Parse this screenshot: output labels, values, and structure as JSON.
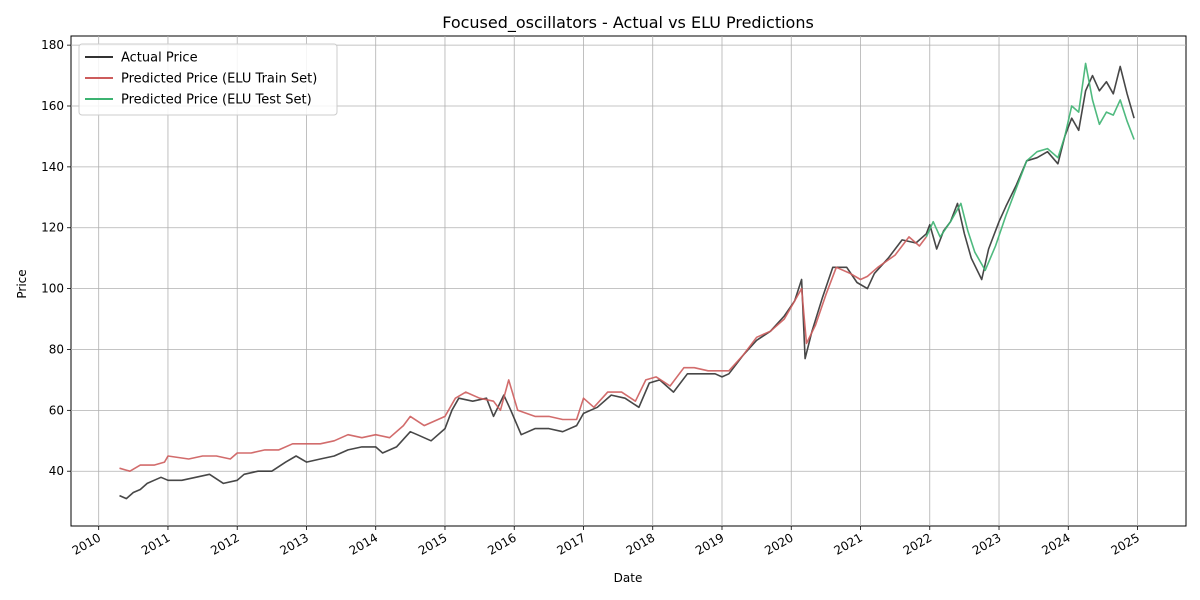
{
  "chart_data": {
    "type": "line",
    "title": "Focused_oscillators - Actual vs ELU Predictions",
    "xlabel": "Date",
    "ylabel": "Price",
    "xlim": [
      2009.6,
      2025.7
    ],
    "ylim": [
      22,
      183
    ],
    "grid": true,
    "legend_position": "top-left",
    "x_ticks": [
      2010,
      2011,
      2012,
      2013,
      2014,
      2015,
      2016,
      2017,
      2018,
      2019,
      2020,
      2021,
      2022,
      2023,
      2024,
      2025
    ],
    "x_tick_labels": [
      "2010",
      "2011",
      "2012",
      "2013",
      "2014",
      "2015",
      "2016",
      "2017",
      "2018",
      "2019",
      "2020",
      "2021",
      "2022",
      "2023",
      "2024",
      "2025"
    ],
    "y_ticks": [
      40,
      60,
      80,
      100,
      120,
      140,
      160,
      180
    ],
    "y_tick_labels": [
      "40",
      "60",
      "80",
      "100",
      "120",
      "140",
      "160",
      "180"
    ],
    "series": [
      {
        "name": "Actual Price",
        "color": "#333333",
        "points": [
          [
            2010.3,
            32
          ],
          [
            2010.4,
            31
          ],
          [
            2010.5,
            33
          ],
          [
            2010.6,
            34
          ],
          [
            2010.7,
            36
          ],
          [
            2010.8,
            37
          ],
          [
            2010.9,
            38
          ],
          [
            2011.0,
            37
          ],
          [
            2011.2,
            37
          ],
          [
            2011.4,
            38
          ],
          [
            2011.6,
            39
          ],
          [
            2011.8,
            36
          ],
          [
            2012.0,
            37
          ],
          [
            2012.1,
            39
          ],
          [
            2012.3,
            40
          ],
          [
            2012.5,
            40
          ],
          [
            2012.7,
            43
          ],
          [
            2012.85,
            45
          ],
          [
            2013.0,
            43
          ],
          [
            2013.2,
            44
          ],
          [
            2013.4,
            45
          ],
          [
            2013.6,
            47
          ],
          [
            2013.8,
            48
          ],
          [
            2014.0,
            48
          ],
          [
            2014.1,
            46
          ],
          [
            2014.3,
            48
          ],
          [
            2014.5,
            53
          ],
          [
            2014.6,
            52
          ],
          [
            2014.8,
            50
          ],
          [
            2015.0,
            54
          ],
          [
            2015.1,
            60
          ],
          [
            2015.2,
            64
          ],
          [
            2015.4,
            63
          ],
          [
            2015.6,
            64
          ],
          [
            2015.7,
            58
          ],
          [
            2015.85,
            65
          ],
          [
            2015.95,
            60
          ],
          [
            2016.1,
            52
          ],
          [
            2016.3,
            54
          ],
          [
            2016.5,
            54
          ],
          [
            2016.7,
            53
          ],
          [
            2016.9,
            55
          ],
          [
            2017.0,
            59
          ],
          [
            2017.2,
            61
          ],
          [
            2017.4,
            65
          ],
          [
            2017.6,
            64
          ],
          [
            2017.8,
            61
          ],
          [
            2017.95,
            69
          ],
          [
            2018.1,
            70
          ],
          [
            2018.3,
            66
          ],
          [
            2018.5,
            72
          ],
          [
            2018.7,
            72
          ],
          [
            2018.9,
            72
          ],
          [
            2019.0,
            71
          ],
          [
            2019.1,
            72
          ],
          [
            2019.3,
            78
          ],
          [
            2019.5,
            83
          ],
          [
            2019.7,
            86
          ],
          [
            2019.9,
            91
          ],
          [
            2020.05,
            96
          ],
          [
            2020.15,
            103
          ],
          [
            2020.2,
            77
          ],
          [
            2020.3,
            86
          ],
          [
            2020.45,
            97
          ],
          [
            2020.6,
            107
          ],
          [
            2020.8,
            107
          ],
          [
            2020.95,
            102
          ],
          [
            2021.1,
            100
          ],
          [
            2021.2,
            105
          ],
          [
            2021.4,
            110
          ],
          [
            2021.6,
            116
          ],
          [
            2021.8,
            115
          ],
          [
            2021.95,
            118
          ],
          [
            2022.0,
            121
          ],
          [
            2022.1,
            113
          ],
          [
            2022.2,
            119
          ],
          [
            2022.3,
            122
          ],
          [
            2022.4,
            128
          ],
          [
            2022.5,
            118
          ],
          [
            2022.6,
            110
          ],
          [
            2022.75,
            103
          ],
          [
            2022.85,
            113
          ],
          [
            2023.0,
            122
          ],
          [
            2023.1,
            127
          ],
          [
            2023.25,
            134
          ],
          [
            2023.4,
            142
          ],
          [
            2023.55,
            143
          ],
          [
            2023.7,
            145
          ],
          [
            2023.85,
            141
          ],
          [
            2023.95,
            150
          ],
          [
            2024.05,
            156
          ],
          [
            2024.15,
            152
          ],
          [
            2024.25,
            165
          ],
          [
            2024.35,
            170
          ],
          [
            2024.45,
            165
          ],
          [
            2024.55,
            168
          ],
          [
            2024.65,
            164
          ],
          [
            2024.75,
            173
          ],
          [
            2024.85,
            164
          ],
          [
            2024.95,
            156
          ]
        ]
      },
      {
        "name": "Predicted Price (ELU Train Set)",
        "color": "#cd5c5c",
        "points": [
          [
            2010.3,
            41
          ],
          [
            2010.45,
            40
          ],
          [
            2010.6,
            42
          ],
          [
            2010.8,
            42
          ],
          [
            2010.95,
            43
          ],
          [
            2011.0,
            45
          ],
          [
            2011.3,
            44
          ],
          [
            2011.5,
            45
          ],
          [
            2011.7,
            45
          ],
          [
            2011.9,
            44
          ],
          [
            2012.0,
            46
          ],
          [
            2012.2,
            46
          ],
          [
            2012.4,
            47
          ],
          [
            2012.6,
            47
          ],
          [
            2012.8,
            49
          ],
          [
            2013.0,
            49
          ],
          [
            2013.2,
            49
          ],
          [
            2013.4,
            50
          ],
          [
            2013.6,
            52
          ],
          [
            2013.8,
            51
          ],
          [
            2014.0,
            52
          ],
          [
            2014.2,
            51
          ],
          [
            2014.4,
            55
          ],
          [
            2014.5,
            58
          ],
          [
            2014.7,
            55
          ],
          [
            2014.9,
            57
          ],
          [
            2015.0,
            58
          ],
          [
            2015.15,
            64
          ],
          [
            2015.3,
            66
          ],
          [
            2015.5,
            64
          ],
          [
            2015.7,
            63
          ],
          [
            2015.8,
            60
          ],
          [
            2015.92,
            70
          ],
          [
            2016.05,
            60
          ],
          [
            2016.3,
            58
          ],
          [
            2016.5,
            58
          ],
          [
            2016.7,
            57
          ],
          [
            2016.9,
            57
          ],
          [
            2017.0,
            64
          ],
          [
            2017.15,
            61
          ],
          [
            2017.35,
            66
          ],
          [
            2017.55,
            66
          ],
          [
            2017.75,
            63
          ],
          [
            2017.9,
            70
          ],
          [
            2018.05,
            71
          ],
          [
            2018.25,
            68
          ],
          [
            2018.45,
            74
          ],
          [
            2018.6,
            74
          ],
          [
            2018.8,
            73
          ],
          [
            2018.95,
            73
          ],
          [
            2019.1,
            73
          ],
          [
            2019.3,
            78
          ],
          [
            2019.5,
            84
          ],
          [
            2019.7,
            86
          ],
          [
            2019.9,
            90
          ],
          [
            2020.05,
            96
          ],
          [
            2020.15,
            100
          ],
          [
            2020.22,
            82
          ],
          [
            2020.35,
            88
          ],
          [
            2020.5,
            98
          ],
          [
            2020.65,
            107
          ],
          [
            2020.85,
            105
          ],
          [
            2021.0,
            103
          ],
          [
            2021.1,
            104
          ],
          [
            2021.25,
            107
          ],
          [
            2021.5,
            111
          ],
          [
            2021.7,
            117
          ],
          [
            2021.85,
            114
          ],
          [
            2021.95,
            117
          ]
        ]
      },
      {
        "name": "Predicted Price (ELU Test Set)",
        "color": "#3cb371",
        "points": [
          [
            2021.95,
            117
          ],
          [
            2022.05,
            122
          ],
          [
            2022.15,
            117
          ],
          [
            2022.3,
            122
          ],
          [
            2022.45,
            128
          ],
          [
            2022.55,
            119
          ],
          [
            2022.65,
            112
          ],
          [
            2022.8,
            106
          ],
          [
            2022.95,
            114
          ],
          [
            2023.1,
            124
          ],
          [
            2023.25,
            133
          ],
          [
            2023.4,
            142
          ],
          [
            2023.55,
            145
          ],
          [
            2023.7,
            146
          ],
          [
            2023.85,
            143
          ],
          [
            2023.95,
            150
          ],
          [
            2024.05,
            160
          ],
          [
            2024.15,
            158
          ],
          [
            2024.25,
            174
          ],
          [
            2024.35,
            162
          ],
          [
            2024.45,
            154
          ],
          [
            2024.55,
            158
          ],
          [
            2024.65,
            157
          ],
          [
            2024.75,
            162
          ],
          [
            2024.85,
            155
          ],
          [
            2024.95,
            149
          ]
        ]
      }
    ]
  }
}
